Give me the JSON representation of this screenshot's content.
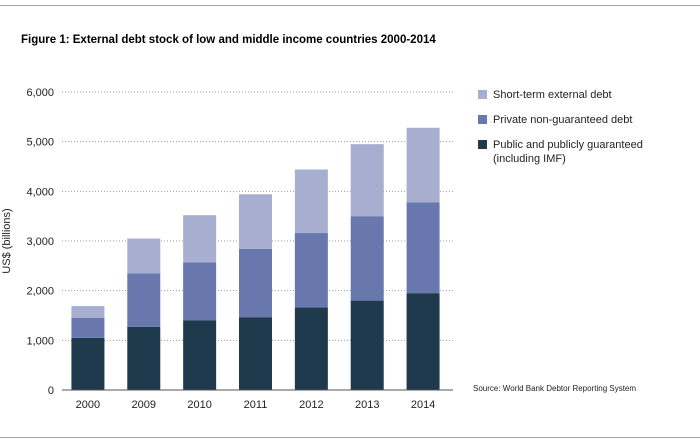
{
  "figure_title": "Figure 1: External debt stock of low and middle income countries 2000-2014",
  "source_note": "Source: World Bank Debtor Reporting System",
  "chart_data": {
    "type": "bar",
    "stacked": true,
    "title": "Figure 1: External debt stock of low and middle income countries 2000-2014",
    "xlabel": "",
    "ylabel": "US$ (billions)",
    "categories": [
      "2000",
      "2009",
      "2010",
      "2011",
      "2012",
      "2013",
      "2014"
    ],
    "ylim": [
      0,
      6000
    ],
    "yticks": [
      0,
      1000,
      2000,
      3000,
      4000,
      5000,
      6000
    ],
    "ytick_labels": [
      "0",
      "1,000",
      "2,000",
      "3,000",
      "4,000",
      "5,000",
      "6,000"
    ],
    "grid": "horizontal dotted",
    "legend_position": "right",
    "series": [
      {
        "name": "Public and publicly guaranteed (including IMF)",
        "color": "#1f3a4d",
        "values": [
          1050,
          1270,
          1400,
          1460,
          1660,
          1800,
          1950
        ]
      },
      {
        "name": "Private non-guaranteed debt",
        "color": "#6878ae",
        "values": [
          400,
          1080,
          1170,
          1380,
          1500,
          1700,
          1830
        ]
      },
      {
        "name": "Short-term external debt",
        "color": "#a7aecf",
        "values": [
          240,
          700,
          950,
          1100,
          1280,
          1450,
          1500
        ]
      }
    ],
    "legend_order": [
      2,
      1,
      0
    ]
  }
}
